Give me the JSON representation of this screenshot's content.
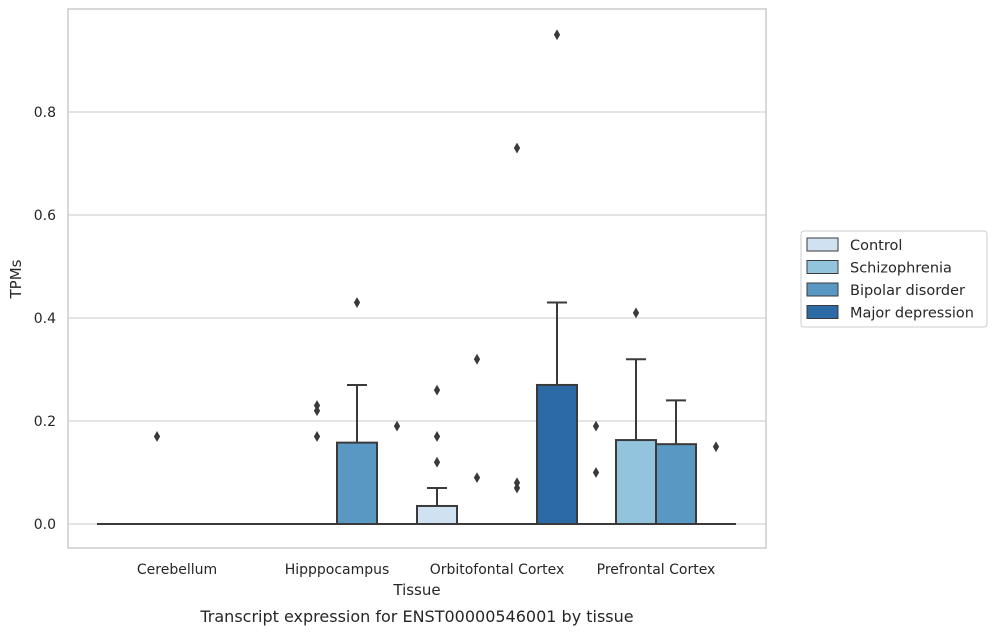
{
  "chart_data": {
    "type": "box",
    "title": "",
    "xlabel": "Tissue",
    "ylabel": "TPMs",
    "caption": "Transcript expression for ENST00000546001 by tissue",
    "categories": [
      "Cerebellum",
      "Hipppocampus",
      "Orbitofontal Cortex",
      "Prefrontal Cortex"
    ],
    "yticks": [
      "0.0",
      "0.2",
      "0.4",
      "0.6",
      "0.8"
    ],
    "ylim": [
      -0.045,
      0.99
    ],
    "grid": "horizontal",
    "legend_position": "right",
    "series": [
      {
        "name": "Control",
        "color": "#d0e1f2",
        "boxes": [
          {
            "category": "Cerebellum",
            "q1": 0,
            "median": 0,
            "q3": 0,
            "whisker_low": 0,
            "whisker_high": 0,
            "outliers": []
          },
          {
            "category": "Hipppocampus",
            "q1": 0,
            "median": 0,
            "q3": 0,
            "whisker_low": 0,
            "whisker_high": 0,
            "outliers": []
          },
          {
            "category": "Orbitofontal Cortex",
            "q1": 0,
            "median": 0,
            "q3": 0.035,
            "whisker_low": 0,
            "whisker_high": 0.07,
            "outliers": [
              0.12,
              0.17,
              0.26
            ]
          },
          {
            "category": "Prefrontal Cortex",
            "q1": 0,
            "median": 0,
            "q3": 0,
            "whisker_low": 0,
            "whisker_high": 0,
            "outliers": [
              0.1,
              0.19
            ]
          }
        ]
      },
      {
        "name": "Schizophrenia",
        "color": "#93c4de",
        "boxes": [
          {
            "category": "Cerebellum",
            "q1": 0,
            "median": 0,
            "q3": 0,
            "whisker_low": 0,
            "whisker_high": 0,
            "outliers": [
              0.17
            ]
          },
          {
            "category": "Hipppocampus",
            "q1": 0,
            "median": 0,
            "q3": 0,
            "whisker_low": 0,
            "whisker_high": 0,
            "outliers": [
              0.17,
              0.22,
              0.23
            ]
          },
          {
            "category": "Orbitofontal Cortex",
            "q1": 0,
            "median": 0,
            "q3": 0,
            "whisker_low": 0,
            "whisker_high": 0,
            "outliers": [
              0.09,
              0.32
            ]
          },
          {
            "category": "Prefrontal Cortex",
            "q1": 0,
            "median": 0,
            "q3": 0.163,
            "whisker_low": 0,
            "whisker_high": 0.32,
            "outliers": [
              0.41
            ]
          }
        ]
      },
      {
        "name": "Bipolar disorder",
        "color": "#5a98c4",
        "boxes": [
          {
            "category": "Cerebellum",
            "q1": 0,
            "median": 0,
            "q3": 0,
            "whisker_low": 0,
            "whisker_high": 0,
            "outliers": []
          },
          {
            "category": "Hipppocampus",
            "q1": 0,
            "median": 0,
            "q3": 0.158,
            "whisker_low": 0,
            "whisker_high": 0.27,
            "outliers": [
              0.43
            ]
          },
          {
            "category": "Orbitofontal Cortex",
            "q1": 0,
            "median": 0,
            "q3": 0,
            "whisker_low": 0,
            "whisker_high": 0,
            "outliers": [
              0.07,
              0.08,
              0.73
            ]
          },
          {
            "category": "Prefrontal Cortex",
            "q1": 0,
            "median": 0,
            "q3": 0.155,
            "whisker_low": 0,
            "whisker_high": 0.24,
            "outliers": []
          }
        ]
      },
      {
        "name": "Major depression",
        "color": "#2c6aa5",
        "boxes": [
          {
            "category": "Cerebellum",
            "q1": 0,
            "median": 0,
            "q3": 0,
            "whisker_low": 0,
            "whisker_high": 0,
            "outliers": []
          },
          {
            "category": "Hipppocampus",
            "q1": 0,
            "median": 0,
            "q3": 0,
            "whisker_low": 0,
            "whisker_high": 0,
            "outliers": [
              0.19
            ]
          },
          {
            "category": "Orbitofontal Cortex",
            "q1": 0,
            "median": 0,
            "q3": 0.27,
            "whisker_low": 0,
            "whisker_high": 0.43,
            "outliers": [
              0.95
            ]
          },
          {
            "category": "Prefrontal Cortex",
            "q1": 0,
            "median": 0,
            "q3": 0,
            "whisker_low": 0,
            "whisker_high": 0,
            "outliers": [
              0.15
            ]
          }
        ]
      }
    ]
  }
}
